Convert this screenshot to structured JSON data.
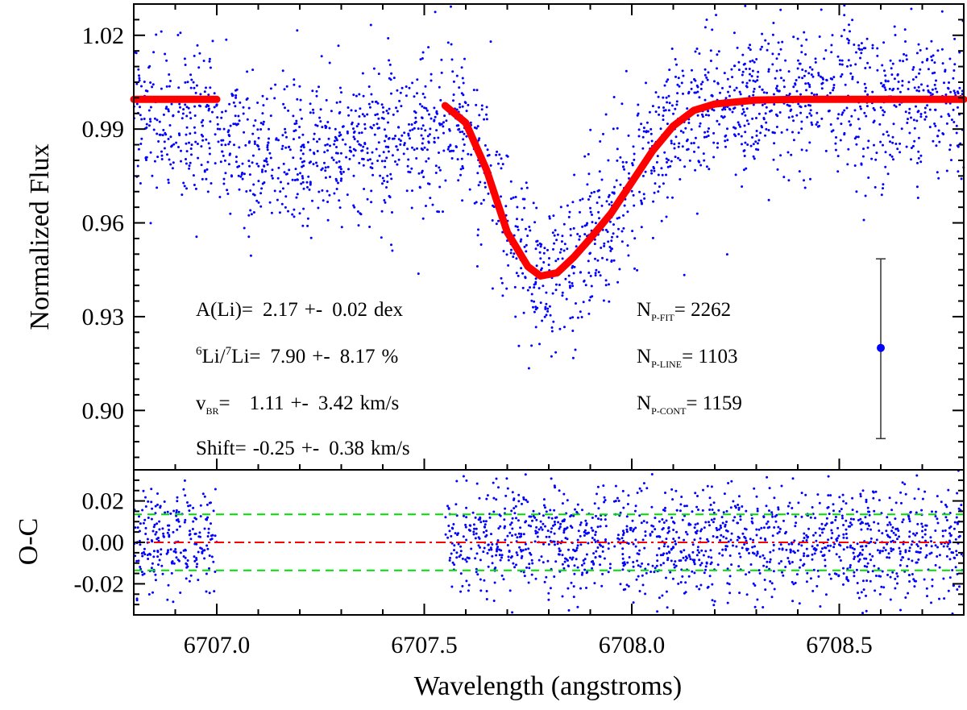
{
  "chart_data": {
    "type": "scatter",
    "title": "",
    "xlabel": "Wavelength (angstroms)",
    "xlim": [
      6706.8,
      6708.8
    ],
    "x_ticks": [
      6707.0,
      6707.5,
      6708.0,
      6708.5
    ],
    "x_tick_labels": [
      "6707.0",
      "6707.5",
      "6708.0",
      "6708.5"
    ],
    "top_panel": {
      "ylabel": "Normalized Flux",
      "ylim": [
        0.881,
        1.03
      ],
      "y_ticks": [
        0.9,
        0.93,
        0.96,
        0.99,
        1.02
      ],
      "y_tick_labels": [
        "0.90",
        "0.93",
        "0.96",
        "0.99",
        "1.02"
      ],
      "series": [
        {
          "name": "observed spectrum",
          "style": "points",
          "color": "#0000ff",
          "n_points": 2262,
          "scatter_sigma": 0.012,
          "continuum_level": 0.995,
          "secondary_dip": {
            "center": 6707.22,
            "depth": 0.012,
            "sigma": 0.2
          }
        },
        {
          "name": "best fit (continuum)",
          "style": "thick-line",
          "color": "#ff0000",
          "x": [
            6706.8,
            6707.0
          ],
          "y": [
            0.9995,
            0.9995
          ]
        },
        {
          "name": "best fit (line)",
          "style": "thick-line",
          "color": "#ff0000",
          "x": [
            6707.55,
            6707.6,
            6707.65,
            6707.7,
            6707.75,
            6707.78,
            6707.82,
            6707.86,
            6707.9,
            6707.95,
            6708.0,
            6708.05,
            6708.1,
            6708.15,
            6708.2,
            6708.3,
            6708.4,
            6708.6,
            6708.8
          ],
          "y": [
            0.9975,
            0.992,
            0.977,
            0.957,
            0.946,
            0.943,
            0.944,
            0.949,
            0.955,
            0.963,
            0.973,
            0.983,
            0.991,
            0.996,
            0.998,
            0.9993,
            0.9995,
            0.9995,
            0.9995
          ]
        }
      ],
      "error_bar": {
        "x": 6708.6,
        "y": 0.92,
        "low": 0.891,
        "high": 0.9485,
        "color": "#0000ff"
      },
      "annotations": {
        "ali_label": "A(Li)=",
        "ali_value": "2.17",
        "ali_err": "0.02",
        "ali_unit": "dex",
        "ratio_sup6": "6",
        "ratio_li": "Li/",
        "ratio_sup7": "7",
        "ratio_li2": "Li=",
        "ratio_value": "7.90",
        "ratio_err": "8.17",
        "ratio_unit": "%",
        "vbr_label": "v",
        "vbr_sub": "BR",
        "vbr_value": "1.11",
        "vbr_err": "3.42",
        "vbr_unit": "km/s",
        "shift_label": "Shift=",
        "shift_value": "-0.25",
        "shift_err": "0.38",
        "shift_unit": "km/s",
        "pm": "+-",
        "np_fit_label": "N",
        "np_fit_sub": "P-FIT",
        "np_fit_value": "2262",
        "np_line_label": "N",
        "np_line_sub": "P-LINE",
        "np_line_value": "1103",
        "np_cont_label": "N",
        "np_cont_sub": "P-CONT",
        "np_cont_value": "1159"
      }
    },
    "bottom_panel": {
      "ylabel": "O-C",
      "ylim": [
        -0.035,
        0.035
      ],
      "y_ticks": [
        -0.02,
        0.0,
        0.02
      ],
      "y_tick_labels": [
        "-0.02",
        "0.00",
        "0.02"
      ],
      "residual_ranges": [
        [
          6706.8,
          6707.0
        ],
        [
          6707.55,
          6708.8
        ]
      ],
      "residual_sigma": 0.0135,
      "zero_line": {
        "y": 0.0,
        "color": "#ff0000",
        "style": "dash-dot"
      },
      "sigma_lines": {
        "y": [
          0.0135,
          -0.0135
        ],
        "color": "#00dd00",
        "style": "dashed"
      }
    }
  }
}
